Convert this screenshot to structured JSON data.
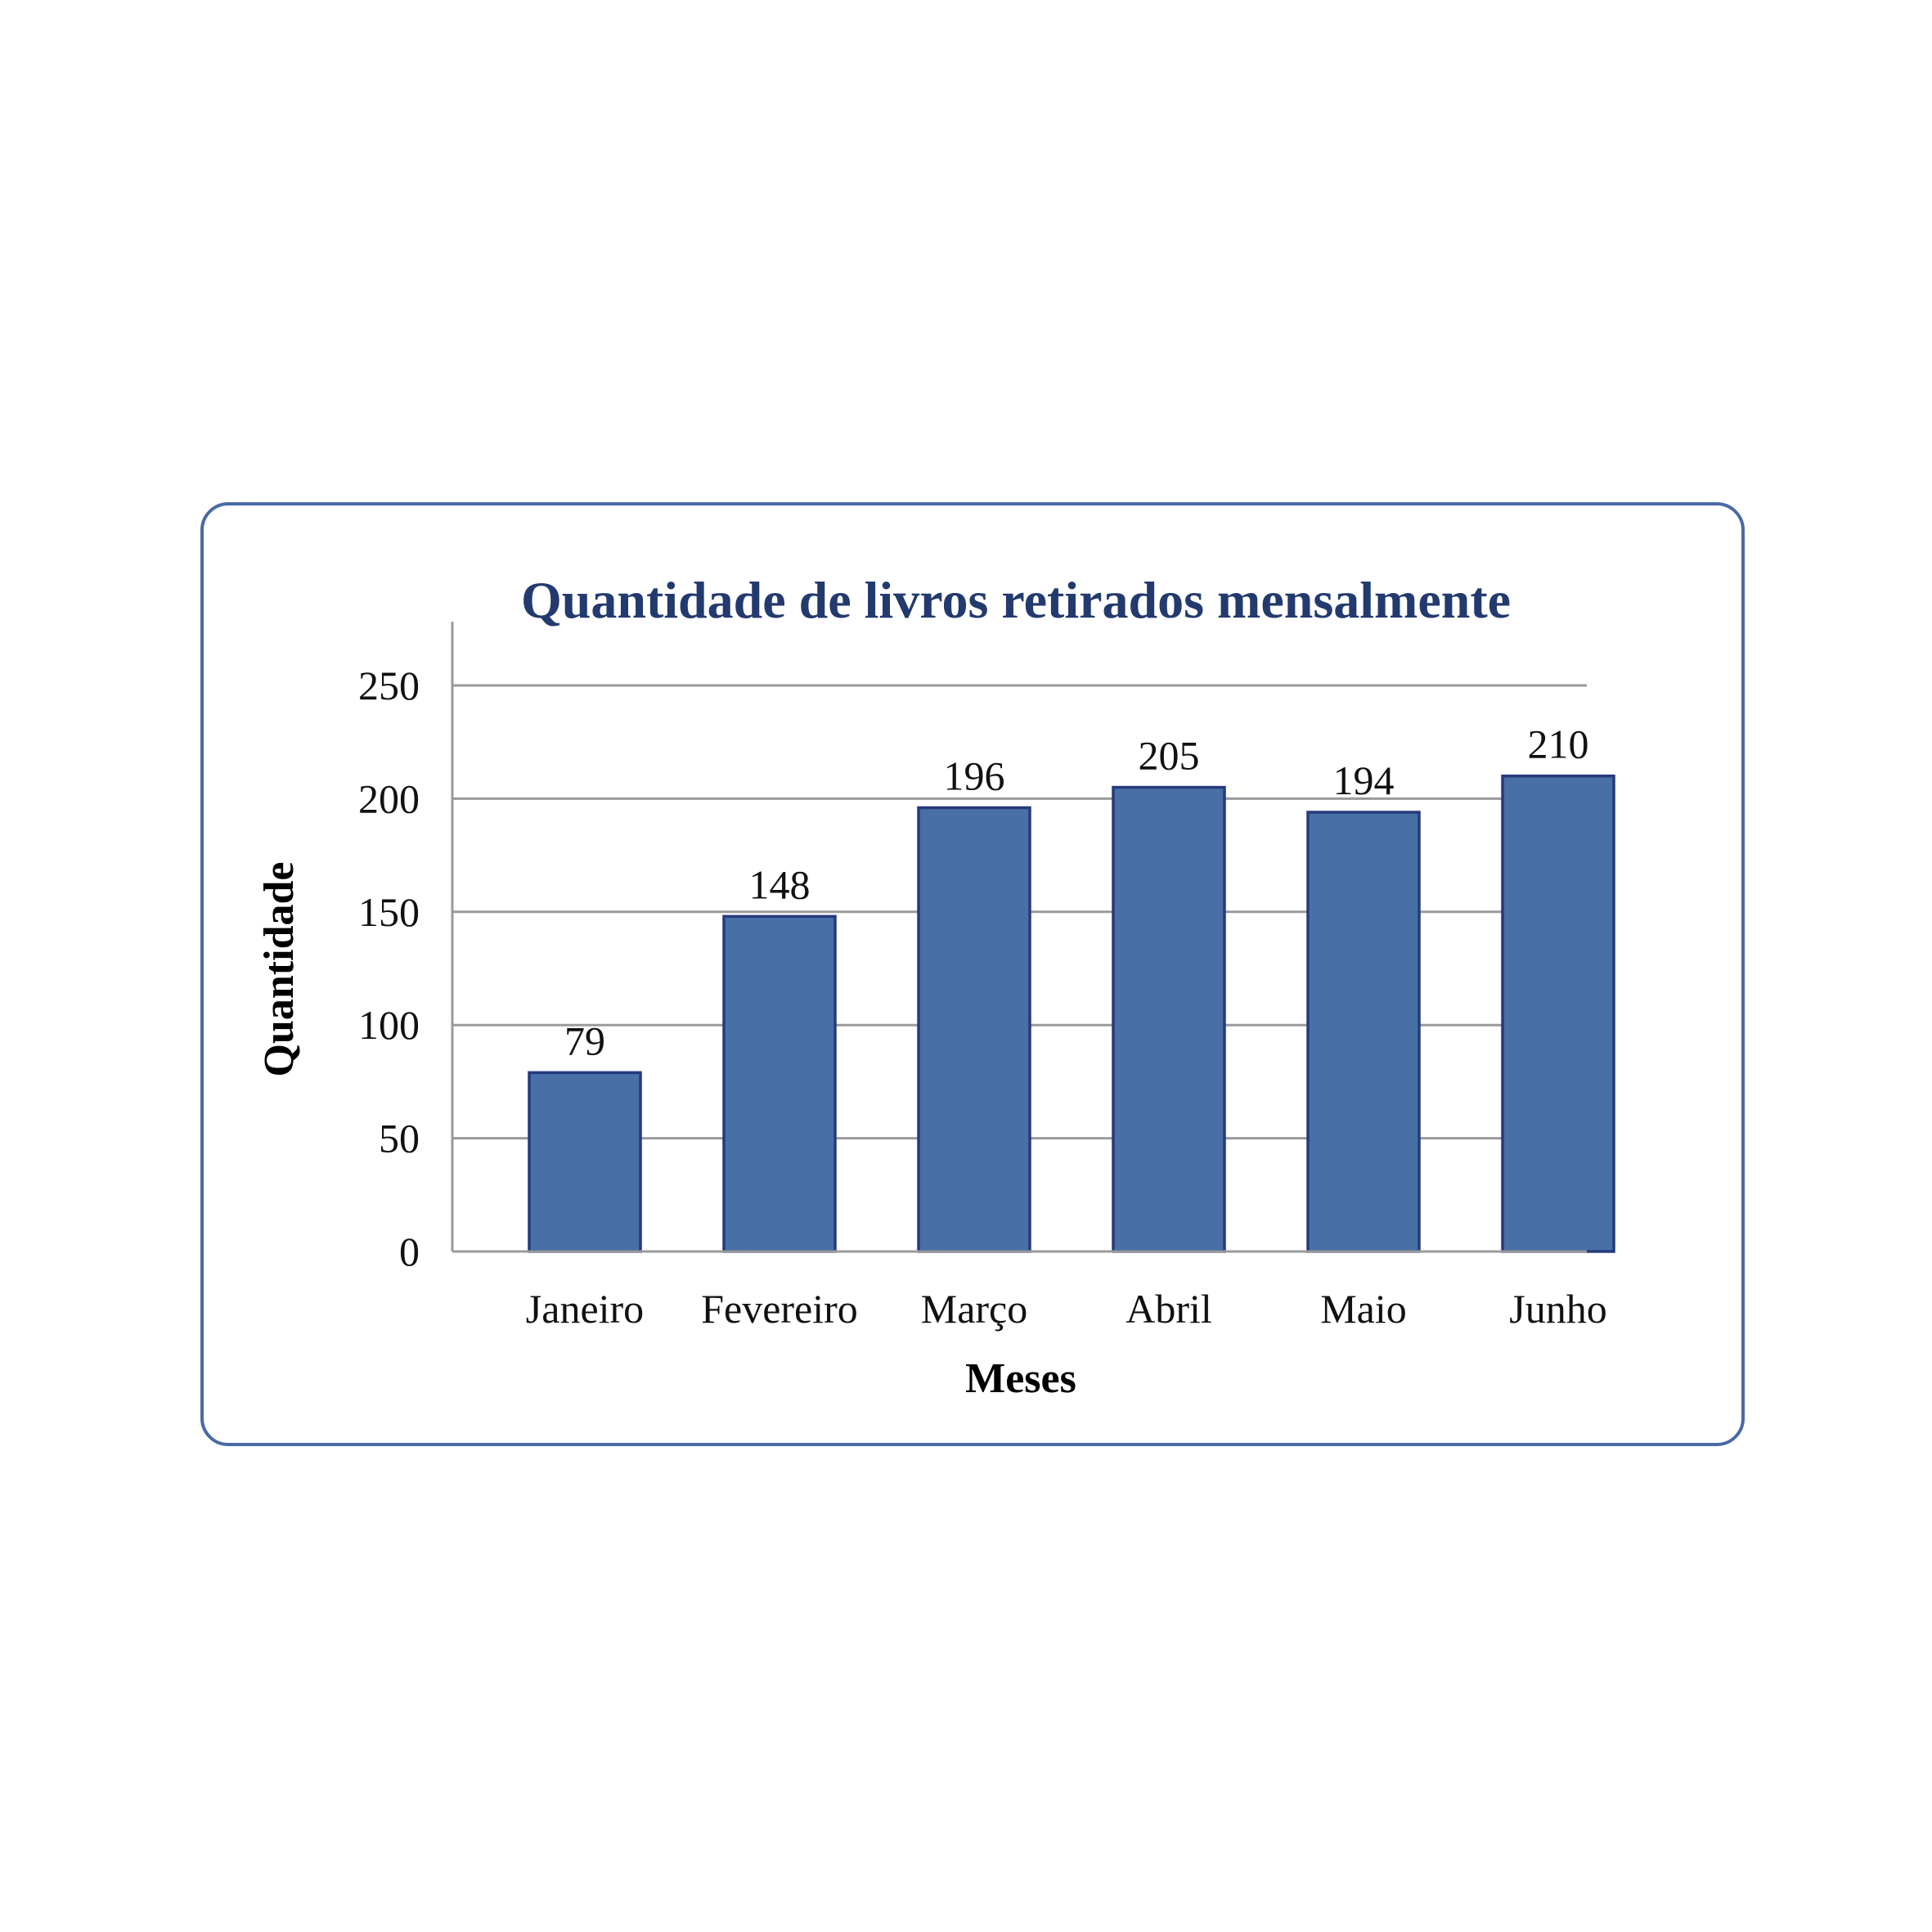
{
  "chart_data": {
    "type": "bar",
    "title": "Quantidade de livros retirados mensalmente",
    "xlabel": "Meses",
    "ylabel": "Quantidade",
    "categories": [
      "Janeiro",
      "Fevereiro",
      "Março",
      "Abril",
      "Maio",
      "Junho"
    ],
    "values": [
      79,
      148,
      196,
      205,
      194,
      210
    ],
    "data_labels": [
      "79",
      "148",
      "196",
      "205",
      "194",
      "210"
    ],
    "ylim": [
      0,
      250
    ],
    "yticks": [
      0,
      50,
      100,
      150,
      200,
      250
    ],
    "grid": true,
    "legend": "none"
  },
  "colors": {
    "bar_fill": "#4870a6",
    "bar_stroke": "#263a7c",
    "title": "#233a6e",
    "card_border": "#4a6aa5",
    "grid": "#9a9a9a"
  }
}
